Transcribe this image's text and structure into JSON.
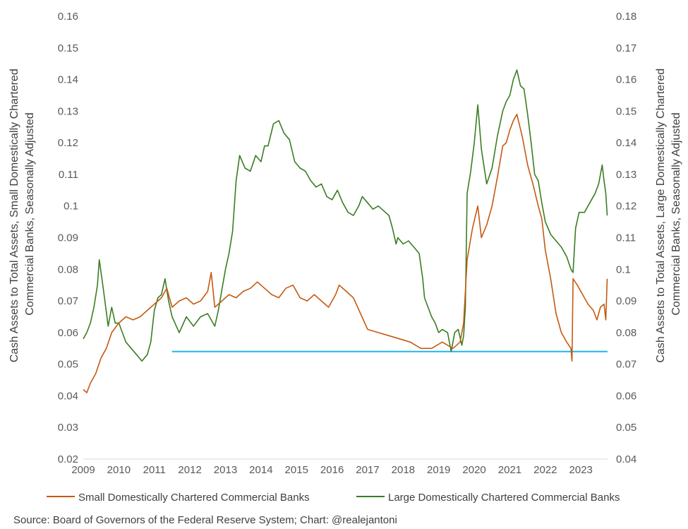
{
  "chart_data": {
    "type": "line",
    "x_axis": {
      "range": [
        2009.0,
        2023.75
      ],
      "ticks": [
        2009,
        2010,
        2011,
        2012,
        2013,
        2014,
        2015,
        2016,
        2017,
        2018,
        2019,
        2020,
        2021,
        2022,
        2023
      ],
      "tick_labels": [
        "2009",
        "2010",
        "2011",
        "2012",
        "2013",
        "2014",
        "2015",
        "2016",
        "2017",
        "2018",
        "2019",
        "2020",
        "2021",
        "2022",
        "2023"
      ]
    },
    "y_left": {
      "label_lines": [
        "Cash Assets to Total Assets, Small Domestically Chartered",
        "Commercial Banks, Seasonally Adjusted"
      ],
      "range": [
        0.02,
        0.16
      ],
      "ticks": [
        0.02,
        0.03,
        0.04,
        0.05,
        0.06,
        0.07,
        0.08,
        0.09,
        0.1,
        0.11,
        0.12,
        0.13,
        0.14,
        0.15,
        0.16
      ],
      "tick_labels": [
        "0.02",
        "0.03",
        "0.04",
        "0.05",
        "0.06",
        "0.07",
        "0.08",
        "0.09",
        "0.1",
        "0.11",
        "0.12",
        "0.13",
        "0.14",
        "0.15",
        "0.16"
      ]
    },
    "y_right": {
      "label_lines": [
        "Cash Assets to Total Assets, Large Domestically Chartered",
        "Commercial Banks, Seasonally Adjusted"
      ],
      "range": [
        0.04,
        0.18
      ],
      "ticks": [
        0.04,
        0.05,
        0.06,
        0.07,
        0.08,
        0.09,
        0.1,
        0.11,
        0.12,
        0.13,
        0.14,
        0.15,
        0.16,
        0.17,
        0.18
      ],
      "tick_labels": [
        "0.04",
        "0.05",
        "0.06",
        "0.07",
        "0.08",
        "0.09",
        "0.1",
        "0.11",
        "0.12",
        "0.13",
        "0.14",
        "0.15",
        "0.16",
        "0.17",
        "0.18"
      ]
    },
    "grid": false,
    "legend_position": "bottom",
    "series": [
      {
        "name": "Small Domestically Chartered Commercial Banks",
        "axis": "left",
        "color": "#c55a11",
        "points": [
          [
            2009.0,
            0.042
          ],
          [
            2009.1,
            0.041
          ],
          [
            2009.2,
            0.044
          ],
          [
            2009.35,
            0.047
          ],
          [
            2009.5,
            0.052
          ],
          [
            2009.65,
            0.055
          ],
          [
            2009.8,
            0.06
          ],
          [
            2010.0,
            0.063
          ],
          [
            2010.2,
            0.065
          ],
          [
            2010.4,
            0.064
          ],
          [
            2010.6,
            0.065
          ],
          [
            2010.8,
            0.067
          ],
          [
            2011.0,
            0.069
          ],
          [
            2011.2,
            0.071
          ],
          [
            2011.35,
            0.074
          ],
          [
            2011.5,
            0.068
          ],
          [
            2011.7,
            0.07
          ],
          [
            2011.9,
            0.071
          ],
          [
            2012.1,
            0.069
          ],
          [
            2012.3,
            0.07
          ],
          [
            2012.5,
            0.073
          ],
          [
            2012.6,
            0.079
          ],
          [
            2012.7,
            0.068
          ],
          [
            2012.9,
            0.07
          ],
          [
            2013.1,
            0.072
          ],
          [
            2013.3,
            0.071
          ],
          [
            2013.5,
            0.073
          ],
          [
            2013.7,
            0.074
          ],
          [
            2013.9,
            0.076
          ],
          [
            2014.1,
            0.074
          ],
          [
            2014.3,
            0.072
          ],
          [
            2014.5,
            0.071
          ],
          [
            2014.7,
            0.074
          ],
          [
            2014.9,
            0.075
          ],
          [
            2015.1,
            0.071
          ],
          [
            2015.3,
            0.07
          ],
          [
            2015.5,
            0.072
          ],
          [
            2015.7,
            0.07
          ],
          [
            2015.9,
            0.068
          ],
          [
            2016.1,
            0.072
          ],
          [
            2016.2,
            0.075
          ],
          [
            2016.4,
            0.073
          ],
          [
            2016.6,
            0.071
          ],
          [
            2016.8,
            0.066
          ],
          [
            2017.0,
            0.061
          ],
          [
            2017.3,
            0.06
          ],
          [
            2017.6,
            0.059
          ],
          [
            2017.9,
            0.058
          ],
          [
            2018.2,
            0.057
          ],
          [
            2018.5,
            0.055
          ],
          [
            2018.8,
            0.055
          ],
          [
            2019.1,
            0.057
          ],
          [
            2019.4,
            0.055
          ],
          [
            2019.6,
            0.057
          ],
          [
            2019.7,
            0.063
          ],
          [
            2019.8,
            0.083
          ],
          [
            2019.95,
            0.093
          ],
          [
            2020.1,
            0.1
          ],
          [
            2020.2,
            0.09
          ],
          [
            2020.35,
            0.094
          ],
          [
            2020.5,
            0.1
          ],
          [
            2020.65,
            0.109
          ],
          [
            2020.8,
            0.119
          ],
          [
            2020.9,
            0.12
          ],
          [
            2021.0,
            0.124
          ],
          [
            2021.1,
            0.127
          ],
          [
            2021.2,
            0.129
          ],
          [
            2021.35,
            0.122
          ],
          [
            2021.5,
            0.113
          ],
          [
            2021.65,
            0.107
          ],
          [
            2021.8,
            0.1
          ],
          [
            2021.9,
            0.096
          ],
          [
            2022.0,
            0.086
          ],
          [
            2022.15,
            0.077
          ],
          [
            2022.3,
            0.066
          ],
          [
            2022.45,
            0.06
          ],
          [
            2022.6,
            0.057
          ],
          [
            2022.72,
            0.055
          ],
          [
            2022.75,
            0.051
          ],
          [
            2022.78,
            0.077
          ],
          [
            2022.9,
            0.075
          ],
          [
            2023.05,
            0.072
          ],
          [
            2023.2,
            0.069
          ],
          [
            2023.35,
            0.067
          ],
          [
            2023.45,
            0.064
          ],
          [
            2023.55,
            0.068
          ],
          [
            2023.65,
            0.069
          ],
          [
            2023.7,
            0.064
          ],
          [
            2023.74,
            0.077
          ]
        ]
      },
      {
        "name": "Large Domestically Chartered Commercial Banks",
        "axis": "right",
        "color": "#3a7d22",
        "points": [
          [
            2009.0,
            0.078
          ],
          [
            2009.1,
            0.08
          ],
          [
            2009.2,
            0.083
          ],
          [
            2009.3,
            0.088
          ],
          [
            2009.4,
            0.095
          ],
          [
            2009.45,
            0.103
          ],
          [
            2009.55,
            0.095
          ],
          [
            2009.7,
            0.082
          ],
          [
            2009.8,
            0.088
          ],
          [
            2009.9,
            0.083
          ],
          [
            2010.0,
            0.083
          ],
          [
            2010.1,
            0.08
          ],
          [
            2010.2,
            0.077
          ],
          [
            2010.35,
            0.075
          ],
          [
            2010.5,
            0.073
          ],
          [
            2010.65,
            0.071
          ],
          [
            2010.8,
            0.073
          ],
          [
            2010.9,
            0.077
          ],
          [
            2011.0,
            0.087
          ],
          [
            2011.1,
            0.091
          ],
          [
            2011.2,
            0.092
          ],
          [
            2011.3,
            0.097
          ],
          [
            2011.4,
            0.09
          ],
          [
            2011.5,
            0.085
          ],
          [
            2011.7,
            0.08
          ],
          [
            2011.9,
            0.085
          ],
          [
            2012.1,
            0.082
          ],
          [
            2012.3,
            0.085
          ],
          [
            2012.5,
            0.086
          ],
          [
            2012.7,
            0.082
          ],
          [
            2012.8,
            0.087
          ],
          [
            2013.0,
            0.1
          ],
          [
            2013.1,
            0.105
          ],
          [
            2013.2,
            0.112
          ],
          [
            2013.3,
            0.128
          ],
          [
            2013.4,
            0.136
          ],
          [
            2013.55,
            0.132
          ],
          [
            2013.7,
            0.131
          ],
          [
            2013.85,
            0.136
          ],
          [
            2014.0,
            0.134
          ],
          [
            2014.1,
            0.139
          ],
          [
            2014.2,
            0.139
          ],
          [
            2014.35,
            0.146
          ],
          [
            2014.5,
            0.147
          ],
          [
            2014.65,
            0.143
          ],
          [
            2014.8,
            0.141
          ],
          [
            2014.95,
            0.134
          ],
          [
            2015.1,
            0.132
          ],
          [
            2015.25,
            0.131
          ],
          [
            2015.4,
            0.128
          ],
          [
            2015.55,
            0.126
          ],
          [
            2015.7,
            0.127
          ],
          [
            2015.85,
            0.123
          ],
          [
            2016.0,
            0.122
          ],
          [
            2016.15,
            0.125
          ],
          [
            2016.3,
            0.121
          ],
          [
            2016.45,
            0.118
          ],
          [
            2016.6,
            0.117
          ],
          [
            2016.75,
            0.12
          ],
          [
            2016.85,
            0.123
          ],
          [
            2017.0,
            0.121
          ],
          [
            2017.15,
            0.119
          ],
          [
            2017.3,
            0.12
          ],
          [
            2017.5,
            0.118
          ],
          [
            2017.6,
            0.117
          ],
          [
            2017.7,
            0.113
          ],
          [
            2017.8,
            0.108
          ],
          [
            2017.85,
            0.11
          ],
          [
            2018.0,
            0.108
          ],
          [
            2018.15,
            0.109
          ],
          [
            2018.3,
            0.107
          ],
          [
            2018.45,
            0.105
          ],
          [
            2018.55,
            0.097
          ],
          [
            2018.6,
            0.091
          ],
          [
            2018.7,
            0.088
          ],
          [
            2018.8,
            0.085
          ],
          [
            2018.9,
            0.083
          ],
          [
            2019.0,
            0.08
          ],
          [
            2019.1,
            0.081
          ],
          [
            2019.25,
            0.08
          ],
          [
            2019.35,
            0.074
          ],
          [
            2019.45,
            0.08
          ],
          [
            2019.55,
            0.081
          ],
          [
            2019.65,
            0.076
          ],
          [
            2019.7,
            0.079
          ],
          [
            2019.75,
            0.088
          ],
          [
            2019.8,
            0.124
          ],
          [
            2019.9,
            0.131
          ],
          [
            2020.0,
            0.14
          ],
          [
            2020.1,
            0.152
          ],
          [
            2020.2,
            0.138
          ],
          [
            2020.35,
            0.127
          ],
          [
            2020.5,
            0.132
          ],
          [
            2020.65,
            0.142
          ],
          [
            2020.8,
            0.15
          ],
          [
            2020.9,
            0.153
          ],
          [
            2021.0,
            0.155
          ],
          [
            2021.1,
            0.16
          ],
          [
            2021.2,
            0.163
          ],
          [
            2021.3,
            0.158
          ],
          [
            2021.4,
            0.157
          ],
          [
            2021.5,
            0.149
          ],
          [
            2021.6,
            0.14
          ],
          [
            2021.7,
            0.13
          ],
          [
            2021.8,
            0.128
          ],
          [
            2021.9,
            0.121
          ],
          [
            2022.0,
            0.115
          ],
          [
            2022.15,
            0.111
          ],
          [
            2022.3,
            0.109
          ],
          [
            2022.45,
            0.107
          ],
          [
            2022.6,
            0.104
          ],
          [
            2022.72,
            0.1
          ],
          [
            2022.78,
            0.099
          ],
          [
            2022.85,
            0.113
          ],
          [
            2022.95,
            0.118
          ],
          [
            2023.1,
            0.118
          ],
          [
            2023.25,
            0.121
          ],
          [
            2023.4,
            0.124
          ],
          [
            2023.5,
            0.127
          ],
          [
            2023.6,
            0.133
          ],
          [
            2023.65,
            0.128
          ],
          [
            2023.7,
            0.124
          ],
          [
            2023.74,
            0.117
          ]
        ]
      },
      {
        "axis": "left",
        "color": "#1fb4f0",
        "points": [
          [
            2011.5,
            0.054
          ],
          [
            2023.75,
            0.054
          ]
        ]
      }
    ],
    "source": "Source: Board of Governors of the Federal Reserve System; Chart: @realejantoni"
  }
}
